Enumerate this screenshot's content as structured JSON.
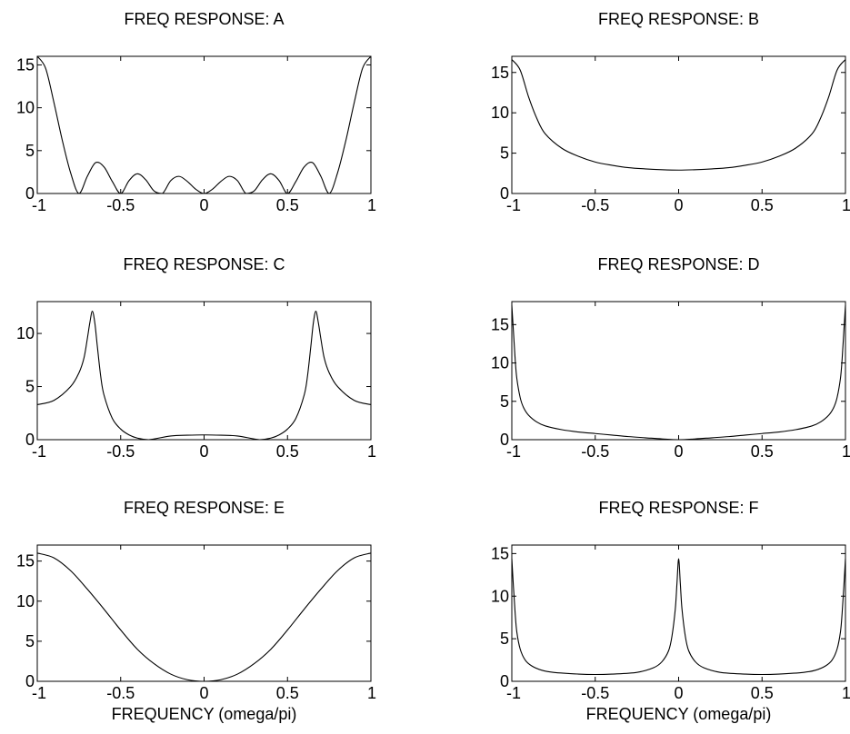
{
  "chart_data": [
    {
      "type": "line",
      "title": "FREQ RESPONSE:   A",
      "xlabel": "",
      "xlim": [
        -1,
        1
      ],
      "ylim": [
        0,
        16
      ],
      "xticks": [
        "-1",
        "-0.5",
        "0",
        "0.5",
        "1"
      ],
      "yticks": [
        "0",
        "5",
        "10",
        "15"
      ],
      "x": [
        -1.0,
        -0.95,
        -0.9,
        -0.85,
        -0.8,
        -0.75,
        -0.7,
        -0.65,
        -0.6,
        -0.55,
        -0.5,
        -0.45,
        -0.4,
        -0.35,
        -0.3,
        -0.25,
        -0.2,
        -0.15,
        -0.1,
        -0.05,
        0.0,
        0.05,
        0.1,
        0.15,
        0.2,
        0.25,
        0.3,
        0.35,
        0.4,
        0.45,
        0.5,
        0.55,
        0.6,
        0.65,
        0.7,
        0.75,
        0.8,
        0.85,
        0.9,
        0.95,
        1.0
      ],
      "y": [
        16.0,
        14.6,
        10.6,
        6.2,
        2.4,
        0.0,
        2.0,
        3.6,
        3.1,
        1.4,
        0.0,
        1.5,
        2.3,
        1.6,
        0.3,
        0.0,
        1.5,
        2.0,
        1.4,
        0.5,
        0.0,
        0.5,
        1.4,
        2.0,
        1.5,
        0.0,
        0.3,
        1.6,
        2.3,
        1.5,
        0.0,
        1.4,
        3.1,
        3.6,
        2.0,
        0.0,
        2.4,
        6.2,
        10.6,
        14.6,
        16.0
      ]
    },
    {
      "type": "line",
      "title": "FREQ RESPONSE:   B",
      "xlabel": "",
      "xlim": [
        -1,
        1
      ],
      "ylim": [
        0,
        17
      ],
      "xticks": [
        "-1",
        "-0.5",
        "0",
        "0.5",
        "1"
      ],
      "yticks": [
        "0",
        "5",
        "10",
        "15"
      ],
      "x": [
        -1.0,
        -0.95,
        -0.9,
        -0.85,
        -0.8,
        -0.7,
        -0.6,
        -0.5,
        -0.4,
        -0.3,
        -0.2,
        -0.1,
        0.0,
        0.1,
        0.2,
        0.3,
        0.4,
        0.5,
        0.6,
        0.7,
        0.8,
        0.85,
        0.9,
        0.95,
        1.0
      ],
      "y": [
        16.6,
        15.3,
        12.0,
        9.3,
        7.4,
        5.6,
        4.6,
        3.9,
        3.5,
        3.2,
        3.05,
        2.95,
        2.9,
        2.95,
        3.05,
        3.2,
        3.5,
        3.9,
        4.6,
        5.6,
        7.4,
        9.3,
        12.0,
        15.3,
        16.6
      ]
    },
    {
      "type": "line",
      "title": "FREQ RESPONSE:   C",
      "xlabel": "",
      "xlim": [
        -1,
        1
      ],
      "ylim": [
        0,
        13
      ],
      "xticks": [
        "-1",
        "-0.5",
        "0",
        "0.5",
        "1"
      ],
      "yticks": [
        "0",
        "5",
        "10"
      ],
      "x": [
        -1.0,
        -0.9,
        -0.8,
        -0.75,
        -0.72,
        -0.7,
        -0.685,
        -0.67,
        -0.655,
        -0.64,
        -0.62,
        -0.6,
        -0.55,
        -0.5,
        -0.45,
        -0.4,
        -0.333,
        -0.2,
        -0.1,
        0.0,
        0.1,
        0.2,
        0.333,
        0.4,
        0.45,
        0.5,
        0.55,
        0.6,
        0.62,
        0.64,
        0.655,
        0.67,
        0.685,
        0.7,
        0.72,
        0.75,
        0.8,
        0.9,
        1.0
      ],
      "y": [
        3.3,
        3.7,
        5.0,
        6.3,
        7.7,
        9.5,
        11.0,
        12.1,
        11.0,
        8.8,
        6.0,
        4.2,
        2.0,
        1.0,
        0.45,
        0.15,
        0.0,
        0.35,
        0.42,
        0.45,
        0.42,
        0.35,
        0.0,
        0.15,
        0.45,
        1.0,
        2.0,
        4.2,
        6.0,
        8.8,
        11.0,
        12.1,
        11.0,
        9.5,
        7.7,
        6.3,
        5.0,
        3.7,
        3.3
      ]
    },
    {
      "type": "line",
      "title": "FREQ RESPONSE:   D",
      "xlabel": "",
      "xlim": [
        -1,
        1
      ],
      "ylim": [
        0,
        18
      ],
      "xticks": [
        "-1",
        "-0.5",
        "0",
        "0.5",
        "1"
      ],
      "yticks": [
        "0",
        "5",
        "10",
        "15"
      ],
      "x": [
        -1.0,
        -0.99,
        -0.98,
        -0.97,
        -0.95,
        -0.93,
        -0.9,
        -0.85,
        -0.8,
        -0.7,
        -0.6,
        -0.5,
        -0.4,
        -0.3,
        -0.2,
        -0.1,
        0.0,
        0.1,
        0.2,
        0.3,
        0.4,
        0.5,
        0.6,
        0.7,
        0.8,
        0.85,
        0.9,
        0.93,
        0.95,
        0.97,
        0.98,
        0.99,
        1.0
      ],
      "y": [
        17.5,
        14.0,
        10.5,
        8.0,
        5.5,
        4.2,
        3.2,
        2.3,
        1.8,
        1.3,
        1.0,
        0.8,
        0.6,
        0.4,
        0.25,
        0.1,
        0.0,
        0.1,
        0.25,
        0.4,
        0.6,
        0.8,
        1.0,
        1.3,
        1.8,
        2.3,
        3.2,
        4.2,
        5.5,
        8.0,
        10.5,
        14.0,
        17.5
      ]
    },
    {
      "type": "line",
      "title": "FREQ RESPONSE:   E",
      "xlabel": "FREQUENCY   (omega/pi)",
      "xlim": [
        -1,
        1
      ],
      "ylim": [
        0,
        17
      ],
      "xticks": [
        "-1",
        "-0.5",
        "0",
        "0.5",
        "1"
      ],
      "yticks": [
        "0",
        "5",
        "10",
        "15"
      ],
      "x": [
        -1.0,
        -0.9,
        -0.8,
        -0.7,
        -0.6,
        -0.5,
        -0.4,
        -0.3,
        -0.2,
        -0.1,
        0.0,
        0.1,
        0.2,
        0.3,
        0.4,
        0.5,
        0.6,
        0.7,
        0.8,
        0.9,
        1.0
      ],
      "y": [
        16.0,
        15.4,
        13.8,
        11.5,
        9.0,
        6.4,
        4.0,
        2.2,
        0.9,
        0.2,
        0.0,
        0.2,
        0.9,
        2.2,
        4.0,
        6.4,
        9.0,
        11.5,
        13.8,
        15.4,
        16.0
      ]
    },
    {
      "type": "line",
      "title": "FREQ RESPONSE:   F",
      "xlabel": "FREQUENCY   (omega/pi)",
      "xlim": [
        -1,
        1
      ],
      "ylim": [
        0,
        16
      ],
      "xticks": [
        "-1",
        "-0.5",
        "0",
        "0.5",
        "1"
      ],
      "yticks": [
        "0",
        "5",
        "10",
        "15"
      ],
      "x": [
        -1.0,
        -0.99,
        -0.98,
        -0.97,
        -0.95,
        -0.92,
        -0.88,
        -0.82,
        -0.75,
        -0.6,
        -0.5,
        -0.4,
        -0.25,
        -0.15,
        -0.1,
        -0.06,
        -0.04,
        -0.02,
        -0.01,
        0.0,
        0.01,
        0.02,
        0.04,
        0.06,
        0.1,
        0.15,
        0.25,
        0.4,
        0.5,
        0.6,
        0.75,
        0.82,
        0.88,
        0.92,
        0.95,
        0.97,
        0.98,
        0.99,
        1.0
      ],
      "y": [
        14.4,
        11.0,
        8.0,
        5.8,
        3.8,
        2.5,
        1.8,
        1.3,
        1.05,
        0.85,
        0.8,
        0.85,
        1.05,
        1.6,
        2.3,
        3.6,
        5.3,
        8.5,
        11.5,
        14.4,
        11.5,
        8.5,
        5.3,
        3.6,
        2.3,
        1.6,
        1.05,
        0.85,
        0.8,
        0.85,
        1.05,
        1.3,
        1.8,
        2.5,
        3.8,
        5.8,
        8.0,
        11.0,
        14.4
      ]
    }
  ]
}
